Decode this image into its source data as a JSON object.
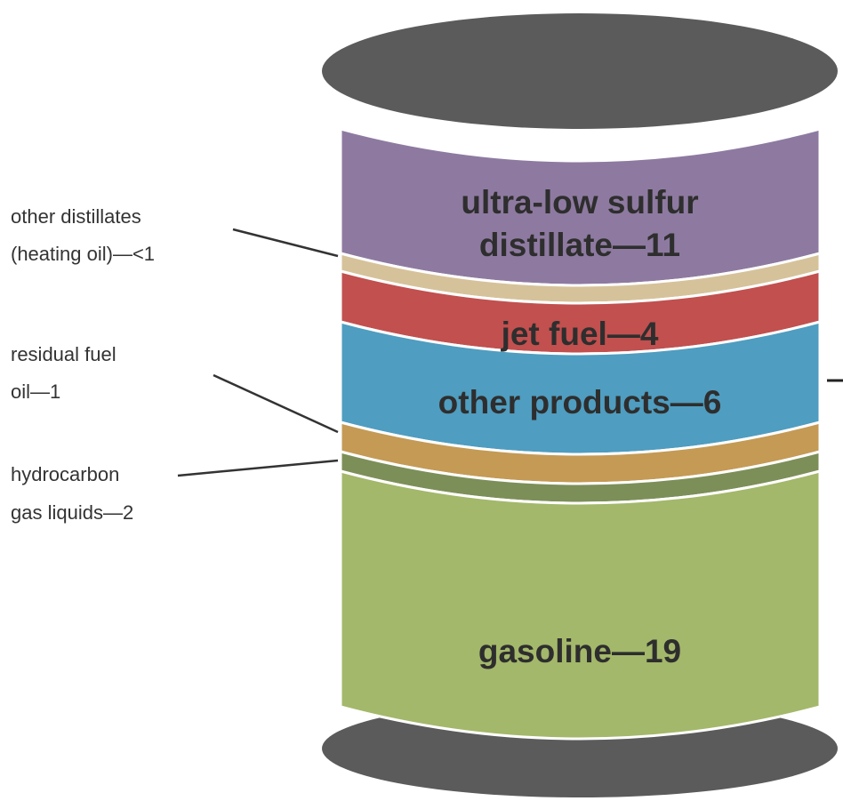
{
  "segments": [
    {
      "lines": [
        "ultra-low sulfur",
        "distillate—11"
      ]
    },
    {
      "lines": [
        "jet fuel—4"
      ]
    },
    {
      "lines": [
        "other products—6"
      ]
    },
    {
      "lines": [
        "gasoline—19"
      ]
    }
  ],
  "callouts": [
    {
      "lines": [
        "other distillates",
        "(heating oil)—<1"
      ]
    },
    {
      "lines": [
        "residual fuel",
        "oil—1"
      ]
    },
    {
      "lines": [
        "hydrocarbon",
        "gas liquids—2"
      ]
    }
  ]
}
